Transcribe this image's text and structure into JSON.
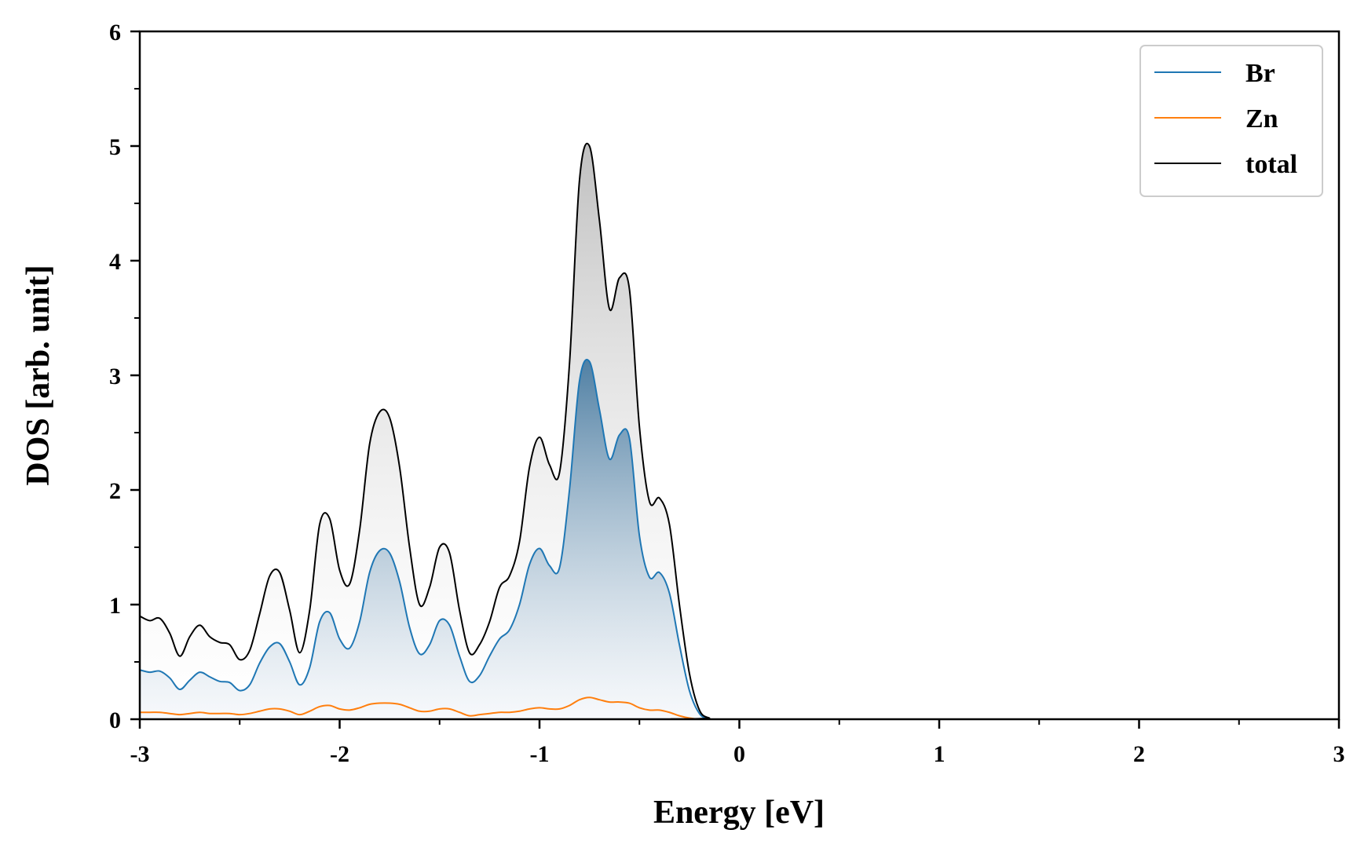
{
  "chart_data": {
    "type": "line",
    "title": "",
    "xlabel": "Energy [eV]",
    "ylabel": "DOS [arb. unit]",
    "xlim": [
      -3,
      3
    ],
    "ylim": [
      0,
      6
    ],
    "xticks": [
      -3,
      -2,
      -1,
      0,
      1,
      2,
      3
    ],
    "xtick_labels": [
      "-3",
      "-2",
      "-1",
      "0",
      "1",
      "2",
      "3"
    ],
    "yticks": [
      0,
      1,
      2,
      3,
      4,
      5,
      6
    ],
    "ytick_labels": [
      "0",
      "1",
      "2",
      "3",
      "4",
      "5",
      "6"
    ],
    "grid": false,
    "legend": {
      "placement": "top-right"
    },
    "series": [
      {
        "name": "Br",
        "color": "#1f77b4",
        "fill": "gradient-blue",
        "x": [
          -3.0,
          -2.95,
          -2.9,
          -2.85,
          -2.8,
          -2.75,
          -2.7,
          -2.65,
          -2.6,
          -2.55,
          -2.5,
          -2.45,
          -2.4,
          -2.35,
          -2.3,
          -2.25,
          -2.2,
          -2.15,
          -2.1,
          -2.05,
          -2.0,
          -1.95,
          -1.9,
          -1.85,
          -1.8,
          -1.75,
          -1.7,
          -1.65,
          -1.6,
          -1.55,
          -1.5,
          -1.45,
          -1.4,
          -1.35,
          -1.3,
          -1.25,
          -1.2,
          -1.15,
          -1.1,
          -1.05,
          -1.0,
          -0.95,
          -0.9,
          -0.85,
          -0.8,
          -0.75,
          -0.7,
          -0.65,
          -0.6,
          -0.55,
          -0.5,
          -0.45,
          -0.4,
          -0.35,
          -0.3,
          -0.25,
          -0.2,
          -0.15,
          -0.1,
          3.0
        ],
        "y": [
          0.43,
          0.41,
          0.42,
          0.36,
          0.26,
          0.34,
          0.41,
          0.37,
          0.33,
          0.32,
          0.25,
          0.3,
          0.49,
          0.63,
          0.66,
          0.5,
          0.3,
          0.45,
          0.85,
          0.93,
          0.7,
          0.62,
          0.85,
          1.28,
          1.47,
          1.45,
          1.2,
          0.8,
          0.57,
          0.65,
          0.86,
          0.82,
          0.55,
          0.33,
          0.38,
          0.55,
          0.7,
          0.78,
          1.0,
          1.35,
          1.49,
          1.34,
          1.32,
          2.0,
          2.95,
          3.12,
          2.7,
          2.27,
          2.48,
          2.45,
          1.6,
          1.24,
          1.28,
          1.1,
          0.65,
          0.25,
          0.05,
          0.0,
          0.0,
          0.0
        ]
      },
      {
        "name": "Zn",
        "color": "#ff7f0e",
        "x": [
          -3.0,
          -2.95,
          -2.9,
          -2.85,
          -2.8,
          -2.75,
          -2.7,
          -2.65,
          -2.6,
          -2.55,
          -2.5,
          -2.45,
          -2.4,
          -2.35,
          -2.3,
          -2.25,
          -2.2,
          -2.15,
          -2.1,
          -2.05,
          -2.0,
          -1.95,
          -1.9,
          -1.85,
          -1.8,
          -1.75,
          -1.7,
          -1.65,
          -1.6,
          -1.55,
          -1.5,
          -1.45,
          -1.4,
          -1.35,
          -1.3,
          -1.25,
          -1.2,
          -1.15,
          -1.1,
          -1.05,
          -1.0,
          -0.95,
          -0.9,
          -0.85,
          -0.8,
          -0.75,
          -0.7,
          -0.65,
          -0.6,
          -0.55,
          -0.5,
          -0.45,
          -0.4,
          -0.35,
          -0.3,
          -0.25,
          -0.2,
          -0.15,
          -0.1,
          3.0
        ],
        "y": [
          0.06,
          0.06,
          0.06,
          0.05,
          0.04,
          0.05,
          0.06,
          0.05,
          0.05,
          0.05,
          0.04,
          0.05,
          0.07,
          0.09,
          0.09,
          0.07,
          0.04,
          0.07,
          0.11,
          0.12,
          0.09,
          0.08,
          0.1,
          0.13,
          0.14,
          0.14,
          0.13,
          0.1,
          0.07,
          0.07,
          0.09,
          0.09,
          0.06,
          0.03,
          0.04,
          0.05,
          0.06,
          0.06,
          0.07,
          0.09,
          0.1,
          0.09,
          0.09,
          0.12,
          0.17,
          0.19,
          0.17,
          0.15,
          0.15,
          0.14,
          0.1,
          0.08,
          0.08,
          0.06,
          0.03,
          0.01,
          0.0,
          0.0,
          0.0,
          0.0
        ]
      },
      {
        "name": "total",
        "color": "#000000",
        "fill": "gradient-gray",
        "x": [
          -3.0,
          -2.95,
          -2.9,
          -2.85,
          -2.8,
          -2.75,
          -2.7,
          -2.65,
          -2.6,
          -2.55,
          -2.5,
          -2.45,
          -2.4,
          -2.35,
          -2.3,
          -2.25,
          -2.2,
          -2.15,
          -2.1,
          -2.05,
          -2.0,
          -1.95,
          -1.9,
          -1.85,
          -1.8,
          -1.75,
          -1.7,
          -1.65,
          -1.6,
          -1.55,
          -1.5,
          -1.45,
          -1.4,
          -1.35,
          -1.3,
          -1.25,
          -1.2,
          -1.15,
          -1.1,
          -1.05,
          -1.0,
          -0.95,
          -0.9,
          -0.85,
          -0.8,
          -0.75,
          -0.7,
          -0.65,
          -0.6,
          -0.55,
          -0.5,
          -0.45,
          -0.4,
          -0.35,
          -0.3,
          -0.25,
          -0.2,
          -0.15,
          -0.1,
          3.0
        ],
        "y": [
          0.9,
          0.86,
          0.88,
          0.75,
          0.55,
          0.72,
          0.82,
          0.72,
          0.67,
          0.65,
          0.52,
          0.6,
          0.92,
          1.25,
          1.28,
          0.95,
          0.58,
          0.95,
          1.7,
          1.75,
          1.3,
          1.18,
          1.65,
          2.4,
          2.68,
          2.63,
          2.2,
          1.5,
          1.0,
          1.15,
          1.5,
          1.45,
          0.95,
          0.58,
          0.65,
          0.85,
          1.15,
          1.25,
          1.55,
          2.2,
          2.46,
          2.22,
          2.15,
          3.1,
          4.7,
          5.0,
          4.35,
          3.58,
          3.85,
          3.75,
          2.55,
          1.9,
          1.93,
          1.7,
          1.0,
          0.4,
          0.08,
          0.01,
          0.0,
          0.0
        ]
      }
    ]
  }
}
